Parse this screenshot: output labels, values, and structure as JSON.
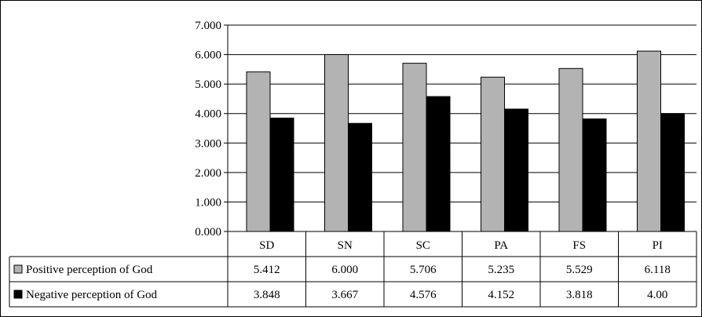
{
  "chart_data": {
    "type": "bar",
    "categories": [
      "SD",
      "SN",
      "SC",
      "PA",
      "FS",
      "PI"
    ],
    "series": [
      {
        "name": "Positive perception of God",
        "values": [
          5.412,
          6.0,
          5.706,
          5.235,
          5.529,
          6.118
        ],
        "labels": [
          "5.412",
          "6.000",
          "5.706",
          "5.235",
          "5.529",
          "6.118"
        ],
        "color": "#b3b3b3"
      },
      {
        "name": "Negative perception of God",
        "values": [
          3.848,
          3.667,
          4.576,
          4.152,
          3.818,
          4.0
        ],
        "labels": [
          "3.848",
          "3.667",
          "4.576",
          "4.152",
          "3.818",
          "4.00"
        ],
        "color": "#000000"
      }
    ],
    "ylim": [
      0,
      7
    ],
    "yticks": [
      "0.000",
      "1.000",
      "2.000",
      "3.000",
      "4.000",
      "5.000",
      "6.000",
      "7.000"
    ],
    "grid": true,
    "legend": "data-table"
  }
}
